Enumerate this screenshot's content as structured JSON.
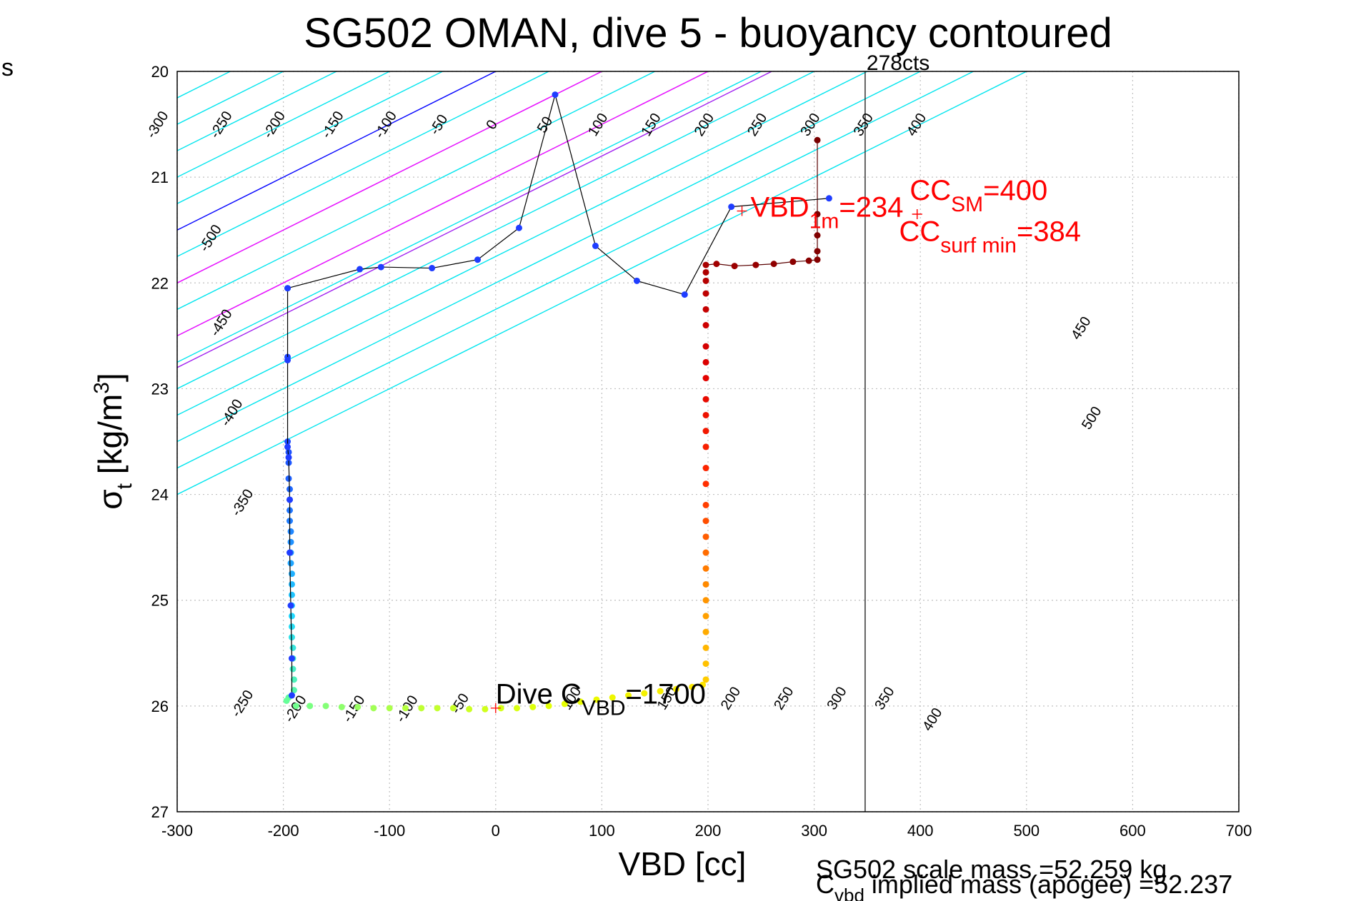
{
  "stray_label": "s",
  "chart_data": {
    "type": "scatter",
    "title": "SG502 OMAN, dive 5 - buoyancy contoured",
    "xlabel": "VBD [cc]",
    "ylabel": "σt [kg/m3]",
    "xlim": [
      -300,
      700
    ],
    "ylim": [
      27,
      20
    ],
    "x_ticks": [
      "-300",
      "-200",
      "-100",
      "0",
      "100",
      "200",
      "300",
      "400",
      "500",
      "600",
      "700"
    ],
    "y_ticks": [
      "20",
      "21",
      "22",
      "23",
      "24",
      "25",
      "26",
      "27"
    ],
    "grid": true,
    "contour": {
      "slope_cc_per_kgm3": -200,
      "cyan_offsets": [
        -500,
        -450,
        -400,
        -350,
        -300,
        -250,
        -200,
        -150,
        -100,
        -50,
        50,
        100,
        150,
        200,
        250,
        300,
        350,
        400,
        450,
        500
      ],
      "blue_offset": 0,
      "magenta_offsets": [
        100,
        200
      ],
      "purple_offset": 260,
      "top_labels": [
        {
          "x": -315,
          "text": "-300"
        },
        {
          "x": -255,
          "text": "-250"
        },
        {
          "x": -205,
          "text": "-200"
        },
        {
          "x": -150,
          "text": "-150"
        },
        {
          "x": -100,
          "text": "-100"
        },
        {
          "x": -50,
          "text": "-50"
        },
        {
          "x": 0,
          "text": "0"
        },
        {
          "x": 50,
          "text": "50"
        },
        {
          "x": 100,
          "text": "100"
        },
        {
          "x": 150,
          "text": "150"
        },
        {
          "x": 200,
          "text": "200"
        },
        {
          "x": 250,
          "text": "250"
        },
        {
          "x": 300,
          "text": "300"
        },
        {
          "x": 350,
          "text": "350"
        },
        {
          "x": 400,
          "text": "400"
        }
      ],
      "left_labels": [
        {
          "x": -265,
          "y": 21.6,
          "text": "-500"
        },
        {
          "x": -255,
          "y": 22.4,
          "text": "-450"
        },
        {
          "x": -245,
          "y": 23.25,
          "text": "-400"
        },
        {
          "x": -235,
          "y": 24.1,
          "text": "-350"
        },
        {
          "x": -235,
          "y": 26.0,
          "text": "-250"
        }
      ],
      "right_labels": [
        {
          "x": 555,
          "y": 22.45,
          "text": "450"
        },
        {
          "x": 565,
          "y": 23.3,
          "text": "500"
        }
      ],
      "bottom_labels": [
        {
          "x": -185,
          "y": 26.05,
          "text": "-200"
        },
        {
          "x": -130,
          "y": 26.05,
          "text": "-150"
        },
        {
          "x": -80,
          "y": 26.05,
          "text": "-100"
        },
        {
          "x": -30,
          "y": 26.0,
          "text": "-50"
        },
        {
          "x": 75,
          "y": 25.95,
          "text": "100"
        },
        {
          "x": 165,
          "y": 25.95,
          "text": "150"
        },
        {
          "x": 225,
          "y": 25.95,
          "text": "200"
        },
        {
          "x": 275,
          "y": 25.95,
          "text": "250"
        },
        {
          "x": 325,
          "y": 25.95,
          "text": "300"
        },
        {
          "x": 370,
          "y": 25.95,
          "text": "350"
        },
        {
          "x": 415,
          "y": 26.15,
          "text": "400"
        }
      ]
    },
    "vertical_line": {
      "x": 348,
      "label": "278cts"
    },
    "series": [
      {
        "name": "dive",
        "points": [
          [
            -196,
            22.05
          ],
          [
            -196,
            22.7
          ],
          [
            -196,
            23.5
          ],
          [
            -195,
            23.6
          ],
          [
            -195,
            23.7
          ],
          [
            -195,
            23.85
          ],
          [
            -194,
            23.95
          ],
          [
            -194,
            24.05
          ],
          [
            -194,
            24.15
          ],
          [
            -194,
            24.25
          ],
          [
            -193,
            24.35
          ],
          [
            -193,
            24.45
          ],
          [
            -193,
            24.55
          ],
          [
            -193,
            24.65
          ],
          [
            -192,
            24.75
          ],
          [
            -192,
            24.85
          ],
          [
            -192,
            24.95
          ],
          [
            -192,
            25.05
          ],
          [
            -192,
            25.15
          ],
          [
            -192,
            25.25
          ],
          [
            -192,
            25.35
          ],
          [
            -191,
            25.45
          ],
          [
            -191,
            25.55
          ],
          [
            -191,
            25.65
          ],
          [
            -190,
            25.75
          ],
          [
            -190,
            25.85
          ],
          [
            -195,
            25.92
          ],
          [
            -197,
            25.95
          ],
          [
            -188,
            26.0
          ],
          [
            -175,
            26.0
          ],
          [
            -160,
            26.0
          ],
          [
            -145,
            26.01
          ],
          [
            -130,
            26.01
          ],
          [
            -115,
            26.02
          ],
          [
            -100,
            26.02
          ],
          [
            -85,
            26.02
          ],
          [
            -70,
            26.02
          ],
          [
            -55,
            26.02
          ],
          [
            -40,
            26.02
          ],
          [
            -25,
            26.03
          ],
          [
            -10,
            26.03
          ],
          [
            5,
            26.02
          ],
          [
            20,
            26.02
          ],
          [
            35,
            26.01
          ],
          [
            50,
            26.0
          ],
          [
            65,
            25.98
          ],
          [
            80,
            25.96
          ],
          [
            95,
            25.94
          ],
          [
            110,
            25.92
          ],
          [
            125,
            25.9
          ],
          [
            140,
            25.88
          ],
          [
            155,
            25.86
          ],
          [
            170,
            25.84
          ],
          [
            185,
            25.82
          ],
          [
            195,
            25.8
          ]
        ]
      },
      {
        "name": "climb",
        "points": [
          [
            198,
            25.75
          ],
          [
            198,
            25.6
          ],
          [
            198,
            25.45
          ],
          [
            198,
            25.3
          ],
          [
            198,
            25.15
          ],
          [
            198,
            25.0
          ],
          [
            198,
            24.85
          ],
          [
            198,
            24.7
          ],
          [
            198,
            24.55
          ],
          [
            198,
            24.4
          ],
          [
            198,
            24.25
          ],
          [
            198,
            24.1
          ],
          [
            198,
            23.9
          ],
          [
            198,
            23.75
          ],
          [
            198,
            23.55
          ],
          [
            198,
            23.4
          ],
          [
            198,
            23.25
          ],
          [
            198,
            23.1
          ],
          [
            198,
            22.9
          ],
          [
            198,
            22.75
          ],
          [
            198,
            22.6
          ],
          [
            198,
            22.4
          ],
          [
            198,
            22.25
          ],
          [
            198,
            22.1
          ],
          [
            198,
            21.98
          ],
          [
            198,
            21.9
          ],
          [
            198,
            21.83
          ],
          [
            208,
            21.82
          ],
          [
            225,
            21.84
          ],
          [
            245,
            21.83
          ],
          [
            262,
            21.82
          ],
          [
            280,
            21.8
          ],
          [
            295,
            21.79
          ],
          [
            303,
            21.78
          ],
          [
            303,
            21.7
          ],
          [
            303,
            21.55
          ],
          [
            303,
            21.35
          ],
          [
            303,
            20.65
          ]
        ]
      },
      {
        "name": "buoyancy",
        "points": [
          [
            314,
            21.2
          ],
          [
            222,
            21.28
          ],
          [
            178,
            22.11
          ],
          [
            133,
            21.98
          ],
          [
            94,
            21.65
          ],
          [
            56,
            20.22
          ],
          [
            22,
            21.48
          ],
          [
            -17,
            21.78
          ],
          [
            -60,
            21.86
          ],
          [
            -108,
            21.85
          ],
          [
            -128,
            21.87
          ],
          [
            -196,
            22.05
          ],
          [
            -196,
            22.73
          ],
          [
            -196,
            23.55
          ],
          [
            -195,
            23.65
          ],
          [
            -194,
            24.05
          ],
          [
            -194,
            24.55
          ],
          [
            -193,
            25.05
          ],
          [
            -192,
            25.55
          ],
          [
            -192,
            25.9
          ]
        ]
      }
    ],
    "markers": [
      {
        "x": 232,
        "y": 21.32,
        "label": "VBD",
        "sub": "1m",
        "value": "=234"
      },
      {
        "x": 397,
        "y": 21.35,
        "label": "CC",
        "sub": "SM",
        "value": "=400"
      },
      {
        "x": 397,
        "y": 21.35,
        "label": "CC",
        "sub": "surf min",
        "value": "=384"
      },
      {
        "x": 0,
        "y": 26.02,
        "label": "Dive C",
        "sub": "VBD",
        "value": "=1700"
      }
    ],
    "footer": {
      "line1": "SG502 scale mass =52.259 kg",
      "line2_main": "C",
      "line2_sub": "vbd",
      "line2_rest": " implied mass (apogee) =52.237"
    },
    "colors": {
      "cyan": "#00e5ee",
      "blue": "#0000ff",
      "magenta": "#ff00ff",
      "purple": "#a020f0",
      "red_text": "#ff0000",
      "grid": "#c0c0c0",
      "dive_top": "#0033ff",
      "dive_bottom": "#bfff00",
      "climb_bottom": "#ffd000",
      "climb_top": "#8b0000",
      "buoy_line": "#000000",
      "buoy_dot": "#1f3dff"
    }
  }
}
